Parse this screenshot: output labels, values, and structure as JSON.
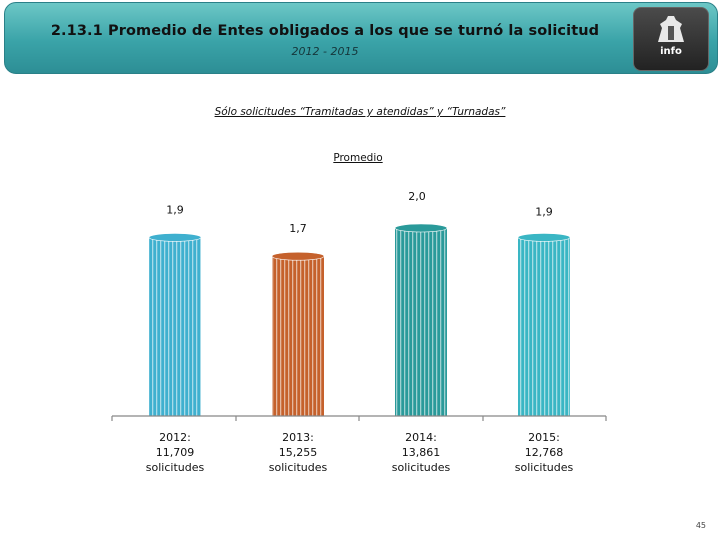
{
  "header": {
    "title": "2.13.1 Promedio de Entes obligados a los que se turnó la solicitud",
    "subtitle": "2012 - 2015",
    "logo_text": "info"
  },
  "subtitle": "Sólo solicitudes “Tramitadas y atendidas” y “Turnadas”",
  "page_number": "45",
  "chart_data": {
    "type": "bar",
    "title": "Promedio",
    "categories": [
      [
        "2012:",
        "11,709",
        "solicitudes"
      ],
      [
        "2013:",
        "15,255",
        "solicitudes"
      ],
      [
        "2014:",
        "13,861",
        "solicitudes"
      ],
      [
        "2015:",
        "12,768",
        "solicitudes"
      ]
    ],
    "values": [
      1.9,
      1.7,
      2.0,
      1.9
    ],
    "value_labels": [
      "1,9",
      "1,7",
      "2,0",
      "1,9"
    ],
    "colors": [
      "#3fb0cf",
      "#c5612c",
      "#2a9a9a",
      "#3ab6c4"
    ],
    "ylim": [
      0,
      2.0
    ],
    "grid": false,
    "legend": "none"
  }
}
